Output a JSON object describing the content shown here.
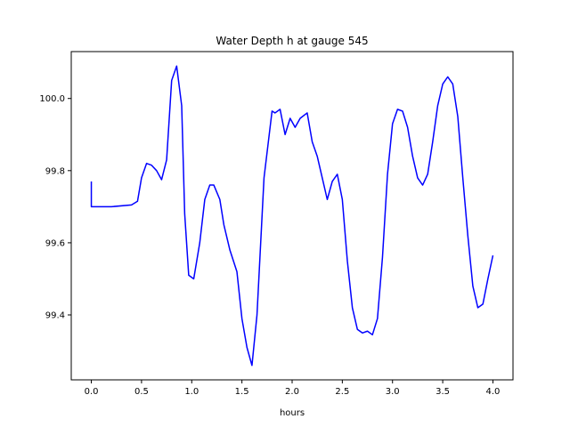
{
  "chart_data": {
    "type": "line",
    "title": "Water Depth h at gauge 545",
    "xlabel": "hours",
    "ylabel": "",
    "xlim": [
      -0.2,
      4.2
    ],
    "ylim": [
      99.22,
      100.13
    ],
    "xticks": [
      0.0,
      0.5,
      1.0,
      1.5,
      2.0,
      2.5,
      3.0,
      3.5,
      4.0
    ],
    "xtick_labels": [
      "0.0",
      "0.5",
      "1.0",
      "1.5",
      "2.0",
      "2.5",
      "3.0",
      "3.5",
      "4.0"
    ],
    "yticks": [
      99.4,
      99.6,
      99.8,
      100.0
    ],
    "ytick_labels": [
      "99.4",
      "99.6",
      "99.8",
      "100.0"
    ],
    "grid": false,
    "series": [
      {
        "color": "#0000ff",
        "x": [
          0.0,
          0.0,
          0.2,
          0.4,
          0.46,
          0.5,
          0.55,
          0.6,
          0.65,
          0.7,
          0.75,
          0.8,
          0.85,
          0.9,
          0.93,
          0.97,
          1.02,
          1.08,
          1.13,
          1.18,
          1.22,
          1.28,
          1.32,
          1.38,
          1.45,
          1.5,
          1.55,
          1.6,
          1.65,
          1.72,
          1.8,
          1.83,
          1.88,
          1.93,
          1.98,
          2.03,
          2.08,
          2.15,
          2.2,
          2.25,
          2.3,
          2.35,
          2.4,
          2.45,
          2.5,
          2.55,
          2.6,
          2.65,
          2.7,
          2.75,
          2.8,
          2.85,
          2.9,
          2.95,
          3.0,
          3.05,
          3.1,
          3.15,
          3.2,
          3.25,
          3.3,
          3.35,
          3.4,
          3.45,
          3.5,
          3.55,
          3.6,
          3.65,
          3.7,
          3.75,
          3.8,
          3.85,
          3.9,
          3.95,
          4.0
        ],
        "y": [
          99.77,
          99.7,
          99.7,
          99.705,
          99.715,
          99.78,
          99.82,
          99.815,
          99.8,
          99.775,
          99.83,
          100.05,
          100.09,
          99.98,
          99.68,
          99.51,
          99.5,
          99.6,
          99.72,
          99.76,
          99.76,
          99.72,
          99.65,
          99.58,
          99.52,
          99.39,
          99.31,
          99.26,
          99.4,
          99.78,
          99.965,
          99.96,
          99.97,
          99.9,
          99.945,
          99.92,
          99.945,
          99.96,
          99.88,
          99.84,
          99.78,
          99.72,
          99.77,
          99.79,
          99.72,
          99.55,
          99.42,
          99.36,
          99.35,
          99.355,
          99.345,
          99.39,
          99.56,
          99.79,
          99.93,
          99.97,
          99.965,
          99.92,
          99.84,
          99.78,
          99.76,
          99.79,
          99.88,
          99.98,
          100.04,
          100.06,
          100.04,
          99.95,
          99.78,
          99.62,
          99.48,
          99.42,
          99.43,
          99.5,
          99.565
        ]
      }
    ]
  }
}
